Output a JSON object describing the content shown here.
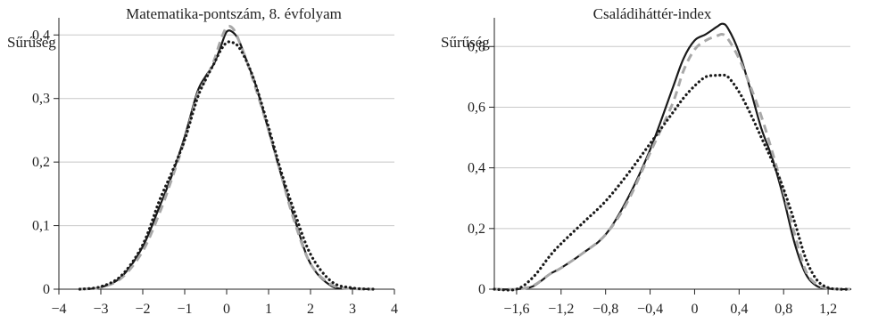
{
  "chart_data": [
    {
      "type": "line",
      "title": "Matematika-pontszám, 8. évfolyam",
      "ylabel": "Sűrűség",
      "xlabel": "",
      "xlim": [
        -4,
        4
      ],
      "ylim": [
        0,
        0.42
      ],
      "xticks": [
        "−4",
        "−3",
        "−2",
        "−1",
        "0",
        "1",
        "2",
        "3",
        "4"
      ],
      "xtick_values": [
        -4,
        -3,
        -2,
        -1,
        0,
        1,
        2,
        3,
        4
      ],
      "yticks": [
        "0",
        "0,1",
        "0,2",
        "0,3",
        "0,4"
      ],
      "ytick_values": [
        0,
        0.1,
        0.2,
        0.3,
        0.4
      ],
      "grid": "horizontal",
      "legend": "none",
      "series": [
        {
          "style": "solid",
          "color": "#1a1a1a",
          "x": [
            -3.5,
            -3.0,
            -2.5,
            -2.0,
            -1.6,
            -1.3,
            -1.0,
            -0.7,
            -0.5,
            -0.3,
            -0.15,
            0.0,
            0.15,
            0.3,
            0.5,
            0.7,
            1.0,
            1.3,
            1.6,
            2.0,
            2.5,
            3.0,
            3.5
          ],
          "values": [
            0.0,
            0.003,
            0.02,
            0.067,
            0.13,
            0.18,
            0.24,
            0.31,
            0.335,
            0.355,
            0.38,
            0.405,
            0.404,
            0.39,
            0.355,
            0.32,
            0.25,
            0.18,
            0.115,
            0.04,
            0.005,
            0.001,
            0.0
          ]
        },
        {
          "style": "dashed",
          "color": "#a8a8a8",
          "x": [
            -3.5,
            -3.0,
            -2.5,
            -2.0,
            -1.6,
            -1.3,
            -1.0,
            -0.7,
            -0.5,
            -0.3,
            -0.15,
            0.0,
            0.15,
            0.3,
            0.5,
            0.7,
            1.0,
            1.3,
            1.6,
            2.0,
            2.5,
            3.0,
            3.5
          ],
          "values": [
            0.0,
            0.003,
            0.018,
            0.06,
            0.12,
            0.175,
            0.235,
            0.305,
            0.33,
            0.36,
            0.39,
            0.412,
            0.41,
            0.39,
            0.355,
            0.315,
            0.25,
            0.18,
            0.11,
            0.04,
            0.007,
            0.001,
            0.0
          ]
        },
        {
          "style": "dotted",
          "color": "#1a1a1a",
          "x": [
            -3.5,
            -3.0,
            -2.5,
            -2.0,
            -1.6,
            -1.3,
            -1.0,
            -0.7,
            -0.5,
            -0.3,
            -0.15,
            0.0,
            0.15,
            0.3,
            0.5,
            0.7,
            1.0,
            1.3,
            1.6,
            2.0,
            2.5,
            3.0,
            3.5
          ],
          "values": [
            0.0,
            0.004,
            0.022,
            0.07,
            0.14,
            0.185,
            0.235,
            0.3,
            0.33,
            0.355,
            0.375,
            0.388,
            0.388,
            0.38,
            0.355,
            0.32,
            0.255,
            0.185,
            0.125,
            0.055,
            0.012,
            0.002,
            0.0
          ]
        }
      ]
    },
    {
      "type": "line",
      "title": "Családiháttér-index",
      "ylabel": "Sűrűség",
      "xlabel": "",
      "xlim": [
        -1.8,
        1.4
      ],
      "ylim": [
        0,
        0.88
      ],
      "xticks": [
        "−1,6",
        "−1,2",
        "−0,8",
        "−0,4",
        "0",
        "0,4",
        "0,8",
        "1,2"
      ],
      "xtick_values": [
        -1.6,
        -1.2,
        -0.8,
        -0.4,
        0,
        0.4,
        0.8,
        1.2
      ],
      "yticks": [
        "0",
        "0,2",
        "0,4",
        "0,6",
        "0,8"
      ],
      "ytick_values": [
        0,
        0.2,
        0.4,
        0.6,
        0.8
      ],
      "grid": "horizontal",
      "legend": "none",
      "series": [
        {
          "style": "solid",
          "color": "#1a1a1a",
          "x": [
            -1.8,
            -1.6,
            -1.45,
            -1.3,
            -1.2,
            -1.0,
            -0.8,
            -0.6,
            -0.4,
            -0.2,
            -0.1,
            0.0,
            0.1,
            0.2,
            0.25,
            0.3,
            0.4,
            0.5,
            0.6,
            0.7,
            0.8,
            0.9,
            1.0,
            1.1,
            1.2,
            1.3,
            1.4
          ],
          "values": [
            0.0,
            0.0,
            0.01,
            0.05,
            0.07,
            0.12,
            0.18,
            0.3,
            0.46,
            0.66,
            0.76,
            0.82,
            0.84,
            0.865,
            0.875,
            0.86,
            0.78,
            0.66,
            0.53,
            0.43,
            0.3,
            0.15,
            0.05,
            0.01,
            0.002,
            0.0,
            0.0
          ]
        },
        {
          "style": "dashed",
          "color": "#a8a8a8",
          "x": [
            -1.8,
            -1.6,
            -1.45,
            -1.3,
            -1.2,
            -1.0,
            -0.8,
            -0.6,
            -0.4,
            -0.2,
            -0.1,
            0.0,
            0.1,
            0.2,
            0.25,
            0.3,
            0.4,
            0.5,
            0.6,
            0.7,
            0.8,
            0.9,
            1.0,
            1.1,
            1.2,
            1.3,
            1.4
          ],
          "values": [
            0.0,
            0.0,
            0.012,
            0.05,
            0.07,
            0.12,
            0.18,
            0.29,
            0.45,
            0.61,
            0.72,
            0.79,
            0.82,
            0.835,
            0.84,
            0.825,
            0.76,
            0.67,
            0.57,
            0.45,
            0.32,
            0.18,
            0.06,
            0.015,
            0.003,
            0.0,
            0.0
          ]
        },
        {
          "style": "dotted",
          "color": "#1a1a1a",
          "x": [
            -1.8,
            -1.6,
            -1.45,
            -1.3,
            -1.2,
            -1.0,
            -0.8,
            -0.6,
            -0.4,
            -0.2,
            -0.1,
            0.0,
            0.1,
            0.2,
            0.25,
            0.3,
            0.4,
            0.5,
            0.6,
            0.7,
            0.8,
            0.9,
            1.0,
            1.1,
            1.2,
            1.3,
            1.4
          ],
          "values": [
            0.0,
            0.0,
            0.04,
            0.11,
            0.15,
            0.22,
            0.29,
            0.38,
            0.48,
            0.58,
            0.63,
            0.67,
            0.7,
            0.705,
            0.705,
            0.7,
            0.65,
            0.58,
            0.5,
            0.42,
            0.33,
            0.22,
            0.1,
            0.03,
            0.005,
            0.0,
            0.0
          ]
        }
      ]
    }
  ]
}
